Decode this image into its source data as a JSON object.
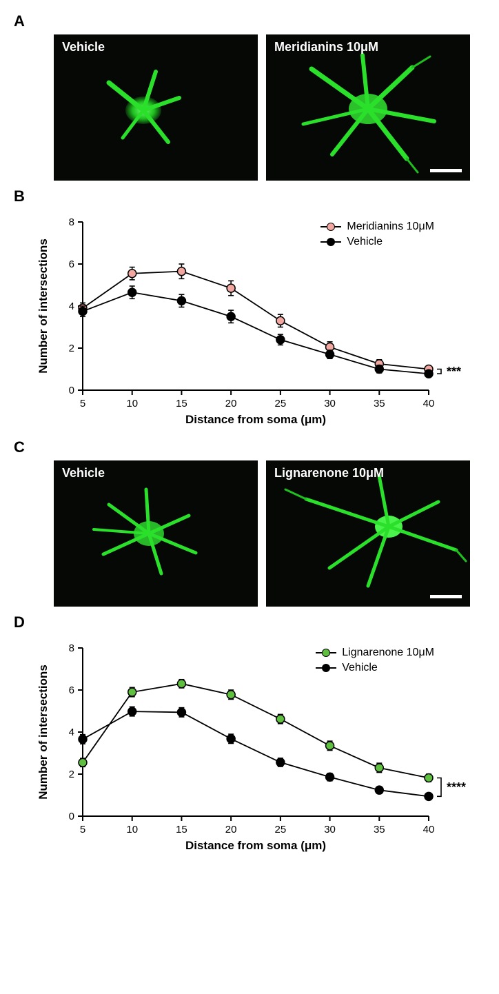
{
  "panels": {
    "A": "A",
    "B": "B",
    "C": "C",
    "D": "D"
  },
  "panelA": {
    "left_label": "Vehicle",
    "right_label": "Meridianins 10μM",
    "neuron_color": "#28e028",
    "background": "#050805"
  },
  "panelC": {
    "left_label": "Vehicle",
    "right_label": "Lignarenone 10μM",
    "neuron_color": "#28e028",
    "background": "#050805"
  },
  "chartB": {
    "type": "line",
    "xlabel": "Distance from soma (μm)",
    "ylabel": "Number of intersections",
    "xlim": [
      5,
      40
    ],
    "xtick_step": 5,
    "ylim": [
      0,
      8
    ],
    "ytick_step": 2,
    "axis_fontsize": 17,
    "label_fontsize": 17,
    "tick_fontsize": 15,
    "background": "#ffffff",
    "axis_color": "#000000",
    "line_width": 1.8,
    "marker_size": 6,
    "significance": "***",
    "legend": [
      {
        "label": "Meridianins 10μM",
        "color": "#f2a7a0"
      },
      {
        "label": "Vehicle",
        "color": "#000000"
      }
    ],
    "series": [
      {
        "name": "Meridianins 10μM",
        "color": "#f2a7a0",
        "x": [
          5,
          10,
          15,
          20,
          25,
          30,
          35,
          40
        ],
        "y": [
          3.9,
          5.55,
          5.65,
          4.85,
          3.3,
          2.05,
          1.25,
          1.0
        ],
        "err": [
          0.25,
          0.3,
          0.35,
          0.35,
          0.3,
          0.25,
          0.2,
          0.15
        ]
      },
      {
        "name": "Vehicle",
        "color": "#000000",
        "x": [
          5,
          10,
          15,
          20,
          25,
          30,
          35,
          40
        ],
        "y": [
          3.75,
          4.65,
          4.25,
          3.5,
          2.4,
          1.7,
          1.0,
          0.78
        ],
        "err": [
          0.25,
          0.3,
          0.3,
          0.3,
          0.25,
          0.2,
          0.18,
          0.12
        ]
      }
    ]
  },
  "chartD": {
    "type": "line",
    "xlabel": "Distance from soma (μm)",
    "ylabel": "Number of intersections",
    "xlim": [
      5,
      40
    ],
    "xtick_step": 5,
    "ylim": [
      0,
      8
    ],
    "ytick_step": 2,
    "axis_fontsize": 17,
    "label_fontsize": 17,
    "tick_fontsize": 15,
    "background": "#ffffff",
    "axis_color": "#000000",
    "line_width": 1.8,
    "marker_size": 6,
    "significance": "****",
    "legend": [
      {
        "label": "Lignarenone 10μM",
        "color": "#5fbf3f"
      },
      {
        "label": "Vehicle",
        "color": "#000000"
      }
    ],
    "series": [
      {
        "name": "Lignarenone 10μM",
        "color": "#5fbf3f",
        "x": [
          5,
          10,
          15,
          20,
          25,
          30,
          35,
          40
        ],
        "y": [
          2.55,
          5.9,
          6.3,
          5.78,
          4.62,
          3.35,
          2.3,
          1.82
        ],
        "err": [
          0.2,
          0.22,
          0.2,
          0.22,
          0.22,
          0.22,
          0.22,
          0.18
        ]
      },
      {
        "name": "Vehicle",
        "color": "#000000",
        "x": [
          5,
          10,
          15,
          20,
          25,
          30,
          35,
          40
        ],
        "y": [
          3.66,
          4.98,
          4.94,
          3.68,
          2.56,
          1.86,
          1.24,
          0.94
        ],
        "err": [
          0.22,
          0.22,
          0.22,
          0.22,
          0.2,
          0.18,
          0.16,
          0.14
        ]
      }
    ]
  }
}
